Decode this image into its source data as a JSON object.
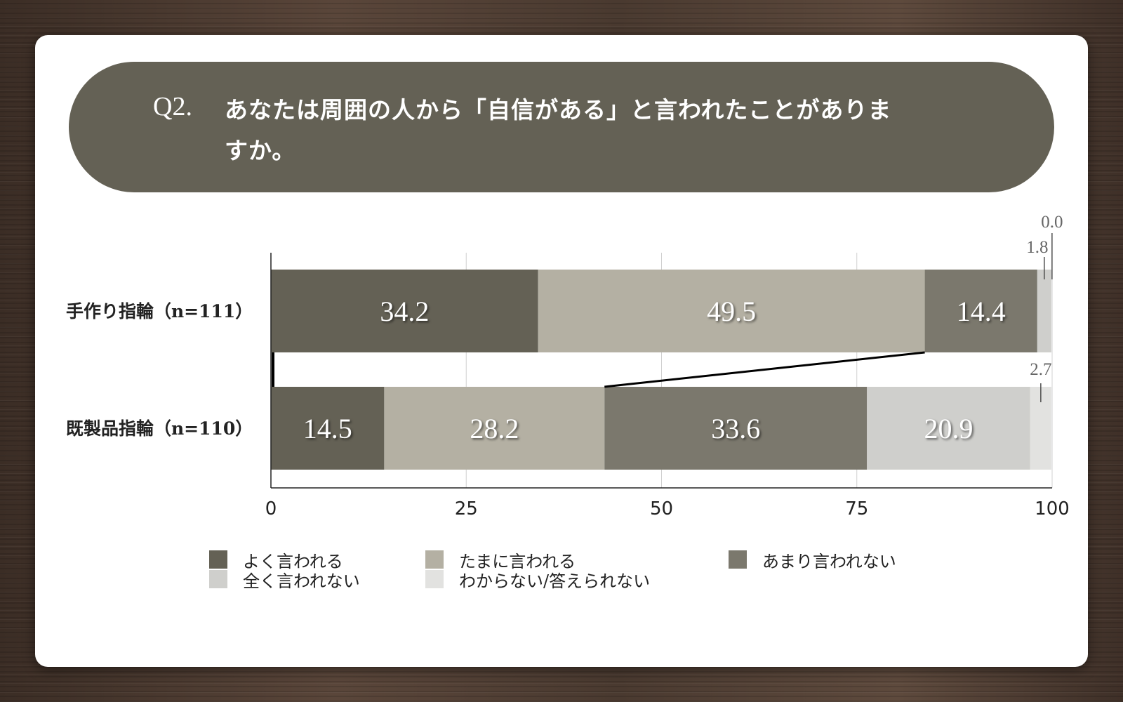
{
  "question": {
    "number": "Q2.",
    "text": "あなたは周囲の人から「自信がある」と言われたことがありますか。"
  },
  "chart_data": {
    "type": "bar",
    "orientation": "horizontal",
    "stacked": true,
    "categories": [
      "手作り指輪（n=111）",
      "既製品指輪（n=110）"
    ],
    "series": [
      {
        "name": "よく言われる",
        "values": [
          34.2,
          14.5
        ],
        "color": "#646155"
      },
      {
        "name": "たまに言われる",
        "values": [
          49.5,
          28.2
        ],
        "color": "#b4b0a3"
      },
      {
        "name": "あまり言われない",
        "values": [
          14.4,
          33.6
        ],
        "color": "#7b786d"
      },
      {
        "name": "全く言われない",
        "values": [
          1.8,
          20.9
        ],
        "color": "#cfcfcc"
      },
      {
        "name": "わからない/答えられない",
        "values": [
          0.0,
          2.7
        ],
        "color": "#e2e2e0"
      }
    ],
    "value_labels": [
      [
        "34.2",
        "49.5",
        "14.4",
        "1.8",
        "0.0"
      ],
      [
        "14.5",
        "28.2",
        "33.6",
        "20.9",
        "2.7"
      ]
    ],
    "xlim": [
      0,
      100
    ],
    "xticks": [
      "0",
      "25",
      "50",
      "75",
      "100"
    ],
    "grid": true,
    "legend_position": "bottom"
  }
}
